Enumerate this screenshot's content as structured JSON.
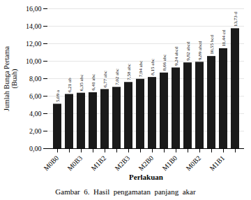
{
  "chart_data": {
    "type": "bar",
    "categories": [
      "M0B0",
      null,
      "M0B3",
      null,
      "M1B2",
      null,
      "M2B3",
      null,
      "M2B0",
      null,
      "M1B0",
      null,
      "M0B2",
      null,
      "M1B1",
      null
    ],
    "values": [
      5.09,
      6.21,
      6.35,
      6.41,
      6.77,
      7.02,
      7.58,
      7.94,
      8.15,
      8.66,
      9.24,
      9.82,
      9.89,
      10.55,
      11.44,
      13.73
    ],
    "value_labels": [
      "5,09 a",
      "6,21 ab",
      "6,35 abc",
      "6,41 abc",
      "6,77 abc",
      "7,02 abc",
      "7,58 abc",
      "7,94 abc",
      "8,15 abc",
      "8,66 abc",
      "9,24 abcd",
      "9,82 abcd",
      "9,89 abcd",
      "10,55 bcd",
      "11,44 cd",
      "13,73 d"
    ],
    "data_labels": true,
    "color": "#1a1a1a",
    "xlabel": "Perlakuan",
    "ylabel": "Jumlah Bunga Pertama\n(Buah)",
    "caption": "Gambar  6.  Hasil  pengamatan  panjang  akar",
    "ylim": [
      0,
      16
    ],
    "yticks": [
      {
        "value": 0,
        "label": "0,00"
      },
      {
        "value": 2,
        "label": "2,00"
      },
      {
        "value": 4,
        "label": "4,00"
      },
      {
        "value": 6,
        "label": "6,00"
      },
      {
        "value": 8,
        "label": "8,00"
      },
      {
        "value": 10,
        "label": "10,00"
      },
      {
        "value": 12,
        "label": "12,00"
      },
      {
        "value": 14,
        "label": "14,00"
      },
      {
        "value": 16,
        "label": "16,00"
      }
    ],
    "grid": true
  }
}
